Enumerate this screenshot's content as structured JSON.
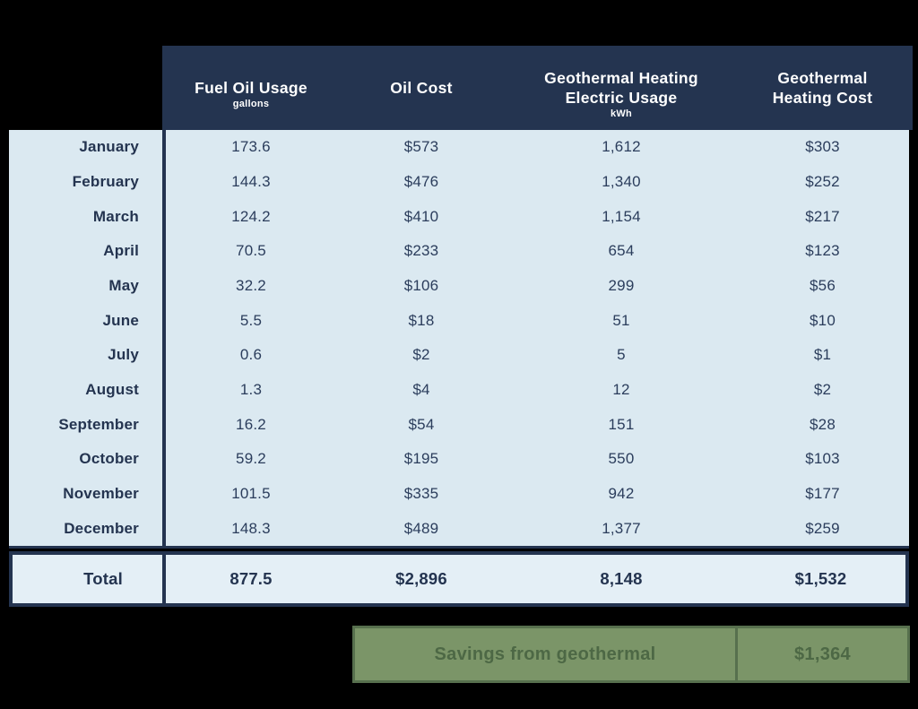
{
  "chart_data": {
    "type": "table",
    "columns": [
      {
        "label": "Fuel Oil Usage",
        "unit": "gallons"
      },
      {
        "label": "Oil Cost",
        "unit": ""
      },
      {
        "label": "Geothermal Heating\nElectric Usage",
        "unit": "kWh"
      },
      {
        "label": "Geothermal\nHeating Cost",
        "unit": ""
      }
    ],
    "rows": [
      {
        "month": "January",
        "values": [
          "173.6",
          "$573",
          "1,612",
          "$303"
        ]
      },
      {
        "month": "February",
        "values": [
          "144.3",
          "$476",
          "1,340",
          "$252"
        ]
      },
      {
        "month": "March",
        "values": [
          "124.2",
          "$410",
          "1,154",
          "$217"
        ]
      },
      {
        "month": "April",
        "values": [
          "70.5",
          "$233",
          "654",
          "$123"
        ]
      },
      {
        "month": "May",
        "values": [
          "32.2",
          "$106",
          "299",
          "$56"
        ]
      },
      {
        "month": "June",
        "values": [
          "5.5",
          "$18",
          "51",
          "$10"
        ]
      },
      {
        "month": "July",
        "values": [
          "0.6",
          "$2",
          "5",
          "$1"
        ]
      },
      {
        "month": "August",
        "values": [
          "1.3",
          "$4",
          "12",
          "$2"
        ]
      },
      {
        "month": "September",
        "values": [
          "16.2",
          "$54",
          "151",
          "$28"
        ]
      },
      {
        "month": "October",
        "values": [
          "59.2",
          "$195",
          "550",
          "$103"
        ]
      },
      {
        "month": "November",
        "values": [
          "101.5",
          "$335",
          "942",
          "$177"
        ]
      },
      {
        "month": "December",
        "values": [
          "148.3",
          "$489",
          "1,377",
          "$259"
        ]
      }
    ],
    "total": {
      "label": "Total",
      "values": [
        "877.5",
        "$2,896",
        "8,148",
        "$1,532"
      ]
    },
    "savings": {
      "label": "Savings from geothermal",
      "value": "$1,364"
    }
  },
  "colors": {
    "background": "#000000",
    "header_navy": "#243450",
    "body_light_blue": "#dbe9f1",
    "total_light_blue": "#e4eff6",
    "text_navy": "#2b3d5c",
    "savings_green_fill": "#7b9568",
    "savings_green_border": "#57704e",
    "savings_green_text": "#4d6845"
  }
}
